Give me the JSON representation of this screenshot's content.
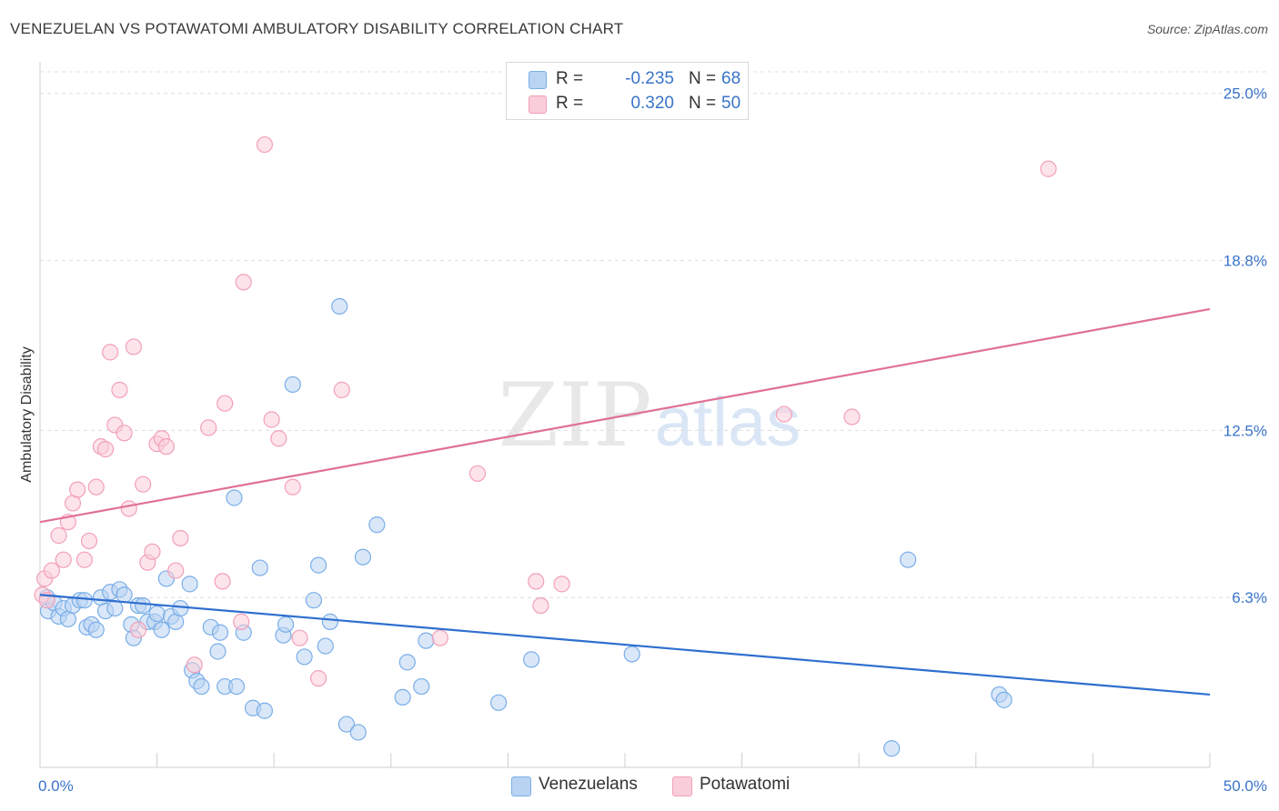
{
  "title": "VENEZUELAN VS POTAWATOMI AMBULATORY DISABILITY CORRELATION CHART",
  "source": "Source: ZipAtlas.com",
  "watermark": {
    "zip": "ZIP",
    "atlas": "atlas"
  },
  "legend": {
    "rows": [
      {
        "r_label": "R =",
        "r_value": "-0.235",
        "n_label": "N =",
        "n_value": "68"
      },
      {
        "r_label": "R =",
        "r_value": "0.320",
        "n_label": "N =",
        "n_value": "50"
      }
    ]
  },
  "bottom_legend": [
    "Venezuelans",
    "Potawatomi"
  ],
  "chart_data": {
    "type": "scatter",
    "title": "VENEZUELAN VS POTAWATOMI AMBULATORY DISABILITY CORRELATION CHART",
    "ylabel": "Ambulatory Disability",
    "xlabel": "",
    "xlim": [
      0,
      50
    ],
    "ylim": [
      0,
      25.8
    ],
    "x_tick_labels": [
      "0.0%",
      "50.0%"
    ],
    "y_ticks": [
      6.3,
      12.5,
      18.8,
      25.0
    ],
    "y_tick_labels": [
      "6.3%",
      "12.5%",
      "18.8%",
      "25.0%"
    ],
    "grid": true,
    "series": [
      {
        "name": "Venezuelans",
        "color": "#7aaee8",
        "fill": "#b9d3f2",
        "trend": {
          "x": [
            0,
            50
          ],
          "y": [
            6.4,
            2.7
          ],
          "color": "#2f6fcf"
        },
        "points": [
          [
            0.3,
            6.3
          ],
          [
            0.35,
            5.8
          ],
          [
            0.6,
            6.1
          ],
          [
            0.8,
            5.6
          ],
          [
            1.0,
            5.9
          ],
          [
            1.2,
            5.5
          ],
          [
            1.4,
            6.0
          ],
          [
            1.7,
            6.2
          ],
          [
            1.9,
            6.2
          ],
          [
            2.0,
            5.2
          ],
          [
            2.2,
            5.3
          ],
          [
            2.4,
            5.1
          ],
          [
            2.6,
            6.3
          ],
          [
            2.8,
            5.8
          ],
          [
            3.0,
            6.5
          ],
          [
            3.2,
            5.9
          ],
          [
            3.4,
            6.6
          ],
          [
            3.6,
            6.4
          ],
          [
            3.9,
            5.3
          ],
          [
            4.0,
            4.8
          ],
          [
            4.2,
            6.0
          ],
          [
            4.4,
            6.0
          ],
          [
            4.6,
            5.4
          ],
          [
            4.9,
            5.4
          ],
          [
            5.0,
            5.7
          ],
          [
            5.2,
            5.1
          ],
          [
            5.4,
            7.0
          ],
          [
            5.6,
            5.6
          ],
          [
            5.8,
            5.4
          ],
          [
            6.0,
            5.9
          ],
          [
            6.4,
            6.8
          ],
          [
            6.5,
            3.6
          ],
          [
            6.7,
            3.2
          ],
          [
            6.9,
            3.0
          ],
          [
            7.3,
            5.2
          ],
          [
            7.6,
            4.3
          ],
          [
            7.7,
            5.0
          ],
          [
            7.9,
            3.0
          ],
          [
            8.3,
            10.0
          ],
          [
            8.4,
            3.0
          ],
          [
            8.7,
            5.0
          ],
          [
            9.1,
            2.2
          ],
          [
            9.4,
            7.4
          ],
          [
            9.6,
            2.1
          ],
          [
            10.4,
            4.9
          ],
          [
            10.5,
            5.3
          ],
          [
            10.8,
            14.2
          ],
          [
            11.3,
            4.1
          ],
          [
            11.7,
            6.2
          ],
          [
            11.9,
            7.5
          ],
          [
            12.2,
            4.5
          ],
          [
            12.4,
            5.4
          ],
          [
            12.8,
            17.1
          ],
          [
            13.1,
            1.6
          ],
          [
            13.6,
            1.3
          ],
          [
            13.8,
            7.8
          ],
          [
            14.4,
            9.0
          ],
          [
            15.5,
            2.6
          ],
          [
            15.7,
            3.9
          ],
          [
            16.3,
            3.0
          ],
          [
            16.5,
            4.7
          ],
          [
            19.6,
            2.4
          ],
          [
            21.0,
            4.0
          ],
          [
            25.3,
            4.2
          ],
          [
            36.4,
            0.7
          ],
          [
            37.1,
            7.7
          ],
          [
            41.0,
            2.7
          ],
          [
            41.2,
            2.5
          ]
        ]
      },
      {
        "name": "Potawatomi",
        "color": "#f2a0b8",
        "fill": "#f9cdd9",
        "trend": {
          "x": [
            0,
            50
          ],
          "y": [
            9.1,
            17.0
          ],
          "color": "#e07095"
        },
        "points": [
          [
            0.2,
            7.0
          ],
          [
            0.5,
            7.3
          ],
          [
            0.8,
            8.6
          ],
          [
            1.0,
            7.7
          ],
          [
            1.2,
            9.1
          ],
          [
            1.4,
            9.8
          ],
          [
            1.6,
            10.3
          ],
          [
            1.9,
            7.7
          ],
          [
            2.1,
            8.4
          ],
          [
            2.4,
            10.4
          ],
          [
            2.6,
            11.9
          ],
          [
            2.8,
            11.8
          ],
          [
            3.0,
            15.4
          ],
          [
            3.2,
            12.7
          ],
          [
            3.4,
            14.0
          ],
          [
            3.6,
            12.4
          ],
          [
            3.8,
            9.6
          ],
          [
            4.0,
            15.6
          ],
          [
            4.2,
            5.1
          ],
          [
            4.4,
            10.5
          ],
          [
            4.6,
            7.6
          ],
          [
            4.8,
            8.0
          ],
          [
            5.0,
            12.0
          ],
          [
            5.2,
            12.2
          ],
          [
            5.4,
            11.9
          ],
          [
            5.8,
            7.3
          ],
          [
            6.0,
            8.5
          ],
          [
            6.6,
            3.8
          ],
          [
            7.2,
            12.6
          ],
          [
            7.8,
            6.9
          ],
          [
            7.9,
            13.5
          ],
          [
            8.6,
            5.4
          ],
          [
            8.7,
            18.0
          ],
          [
            9.6,
            23.1
          ],
          [
            9.9,
            12.9
          ],
          [
            10.2,
            12.2
          ],
          [
            10.8,
            10.4
          ],
          [
            11.1,
            4.8
          ],
          [
            11.9,
            3.3
          ],
          [
            12.9,
            14.0
          ],
          [
            18.7,
            10.9
          ],
          [
            21.2,
            6.9
          ],
          [
            21.4,
            6.0
          ],
          [
            22.3,
            6.8
          ],
          [
            17.1,
            4.8
          ],
          [
            31.8,
            13.1
          ],
          [
            34.7,
            13.0
          ],
          [
            43.1,
            22.2
          ],
          [
            0.1,
            6.4
          ],
          [
            0.3,
            6.2
          ]
        ]
      }
    ]
  }
}
